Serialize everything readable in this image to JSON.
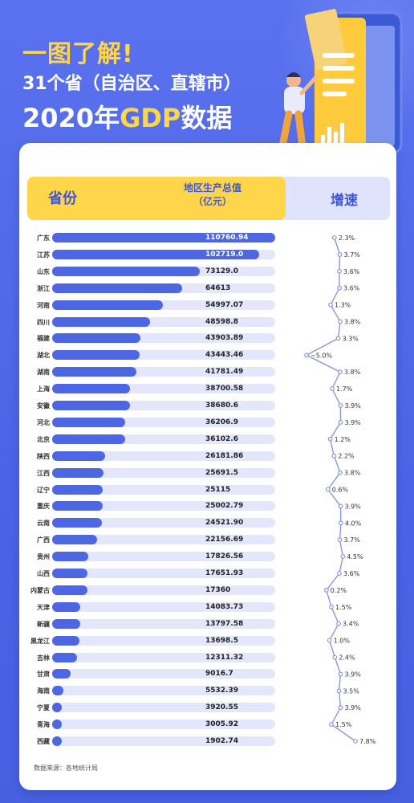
{
  "title": {
    "line1": "一图了解!",
    "line2": "31个省（自治区、直辖市）",
    "line3_prefix": "2020年",
    "line3_accent": "GDP",
    "line3_suffix": "数据"
  },
  "header": {
    "province_label": "省份",
    "gdp_label_1": "地区生产总值",
    "gdp_label_2": "（亿元）",
    "growth_label": "增速"
  },
  "source": "数据来源：各地统计局",
  "colors": {
    "bar": "#4c66e4",
    "track": "#e4e6fb",
    "header_yellow": "#ffd54a",
    "line": "#8a98df"
  },
  "chart_data": {
    "type": "bar",
    "xlabel": "地区生产总值（亿元）",
    "ylabel": "省份",
    "categories": [
      "广东",
      "江苏",
      "山东",
      "浙江",
      "河南",
      "四川",
      "福建",
      "湖北",
      "湖南",
      "上海",
      "安徽",
      "河北",
      "北京",
      "陕西",
      "江西",
      "辽宁",
      "重庆",
      "云南",
      "广西",
      "贵州",
      "山西",
      "内蒙古",
      "天津",
      "新疆",
      "黑龙江",
      "吉林",
      "甘肃",
      "海南",
      "宁夏",
      "青海",
      "西藏"
    ],
    "gdp_labels": [
      "110760.94",
      "102719.0",
      "73129.0",
      "64613",
      "54997.07",
      "48598.8",
      "43903.89",
      "43443.46",
      "41781.49",
      "38700.58",
      "38680.6",
      "36206.9",
      "36102.6",
      "26181.86",
      "25691.5",
      "25115",
      "25002.79",
      "24521.90",
      "22156.69",
      "17826.56",
      "17651.93",
      "17360",
      "14083.73",
      "13797.58",
      "13698.5",
      "12311.32",
      "9016.7",
      "5532.39",
      "3920.55",
      "3005.92",
      "1902.74"
    ],
    "values": [
      110760.94,
      102719.0,
      73129.0,
      64613,
      54997.07,
      48598.8,
      43903.89,
      43443.46,
      41781.49,
      38700.58,
      38680.6,
      36206.9,
      36102.6,
      26181.86,
      25691.5,
      25115,
      25002.79,
      24521.9,
      22156.69,
      17826.56,
      17651.93,
      17360,
      14083.73,
      13797.58,
      13698.5,
      12311.32,
      9016.7,
      5532.39,
      3920.55,
      3005.92,
      1902.74
    ],
    "growth_labels": [
      "2.3%",
      "3.7%",
      "3.6%",
      "3.6%",
      "1.3%",
      "3.8%",
      "3.3%",
      "−5.0%",
      "3.8%",
      "1.7%",
      "3.9%",
      "3.9%",
      "1.2%",
      "2.2%",
      "3.8%",
      "0.6%",
      "3.9%",
      "4.0%",
      "3.7%",
      "4.5%",
      "3.6%",
      "0.2%",
      "1.5%",
      "3.4%",
      "1.0%",
      "2.4%",
      "3.9%",
      "3.5%",
      "3.9%",
      "1.5%",
      "7.8%"
    ],
    "growth": [
      2.3,
      3.7,
      3.6,
      3.6,
      1.3,
      3.8,
      3.3,
      -5.0,
      3.8,
      1.7,
      3.9,
      3.9,
      1.2,
      2.2,
      3.8,
      0.6,
      3.9,
      4.0,
      3.7,
      4.5,
      3.6,
      0.2,
      1.5,
      3.4,
      1.0,
      2.4,
      3.9,
      3.5,
      3.9,
      1.5,
      7.8
    ]
  }
}
